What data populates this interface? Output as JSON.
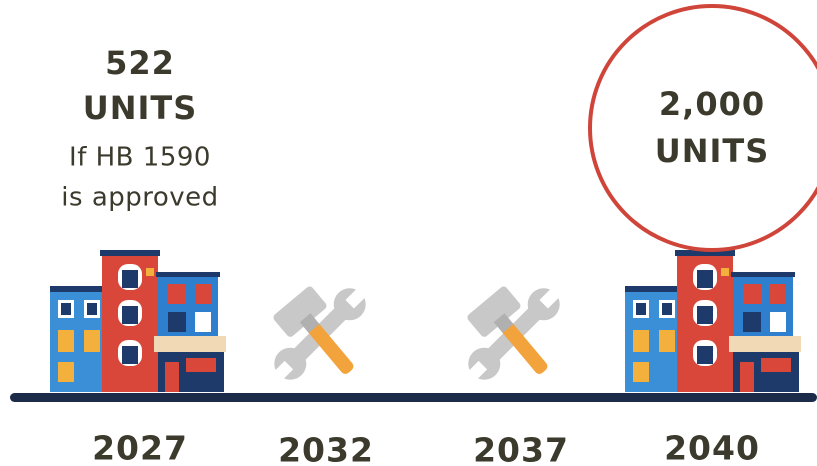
{
  "milestones": [
    {
      "year": "2027",
      "value": "522",
      "unit": "UNITS",
      "note": [
        "If HB 1590",
        "is approved"
      ]
    },
    {
      "year": "2032"
    },
    {
      "year": "2037"
    },
    {
      "year": "2040",
      "value": "2,000",
      "unit": "UNITS"
    }
  ]
}
